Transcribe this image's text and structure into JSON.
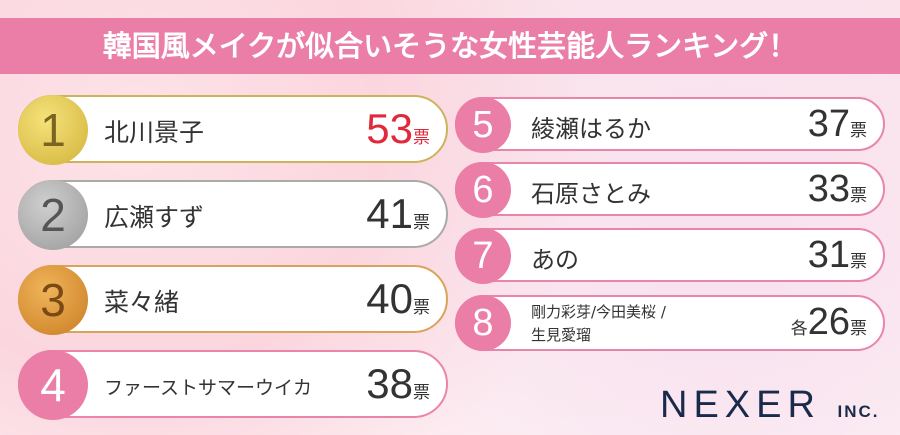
{
  "title": "韓国風メイクが似合いそうな女性芸能人ランキング！",
  "unit": "票",
  "ranking": [
    {
      "rank": "1",
      "name": "北川景子",
      "votes": "53",
      "medal": "gold"
    },
    {
      "rank": "2",
      "name": "広瀬すず",
      "votes": "41",
      "medal": "silver"
    },
    {
      "rank": "3",
      "name": "菜々緒",
      "votes": "40",
      "medal": "bronze"
    },
    {
      "rank": "4",
      "name": "ファーストサマーウイカ",
      "votes": "38"
    },
    {
      "rank": "5",
      "name": "綾瀬はるか",
      "votes": "37"
    },
    {
      "rank": "6",
      "name": "石原さとみ",
      "votes": "33"
    },
    {
      "rank": "7",
      "name": "あの",
      "votes": "31"
    },
    {
      "rank": "8",
      "name_line1": "剛力彩芽/今田美桜 /",
      "name_line2": "生見愛瑠",
      "prefix": "各",
      "votes": "26"
    }
  ],
  "colors": {
    "accent": "#ea7ea6",
    "gold": "#d9b93a",
    "silver": "#9a9a9a",
    "bronze": "#d48a2c",
    "top_votes": "#e0293a"
  },
  "logo": {
    "main": "NEXER",
    "suffix": "INC."
  }
}
